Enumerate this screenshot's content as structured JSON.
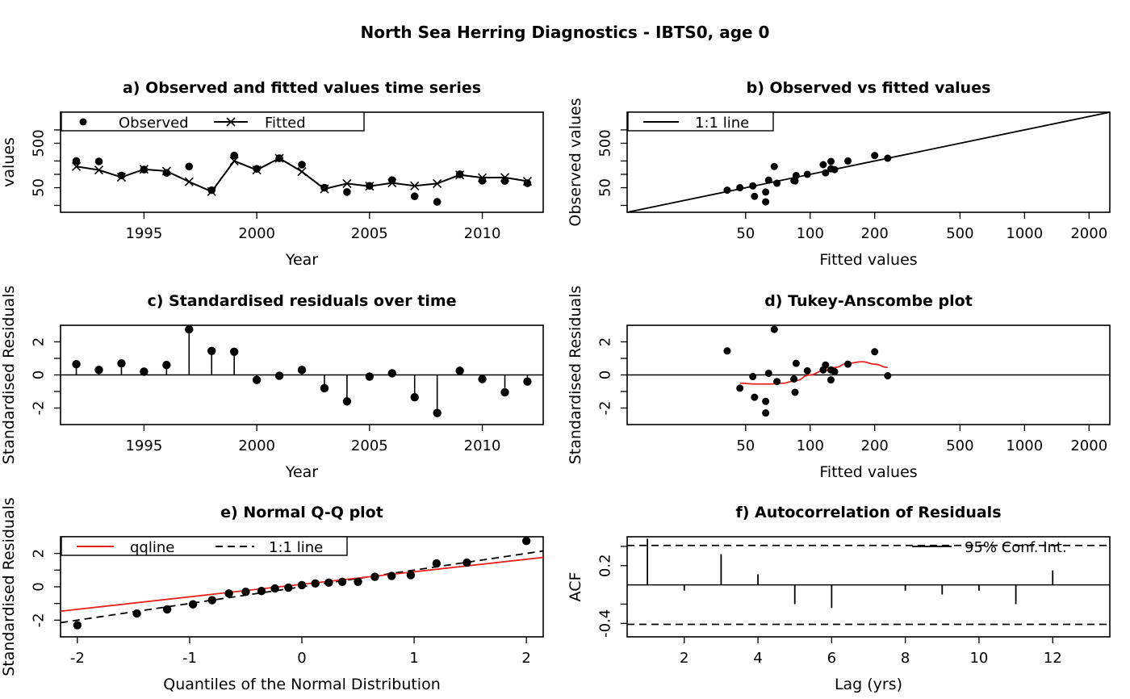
{
  "main_title": "North Sea Herring Diagnostics - IBTS0, age 0",
  "chart_data": [
    {
      "id": "a",
      "type": "line",
      "title": "a) Observed and fitted values time series",
      "xlabel": "Year",
      "ylabel": "values",
      "xlim": [
        1991.3,
        2012.7
      ],
      "ylim_log": [
        14,
        2500
      ],
      "xticks": [
        1995,
        2000,
        2005,
        2010
      ],
      "yticks": [
        50,
        500
      ],
      "legend": [
        "Observed",
        "Fitted"
      ],
      "legend_position": "top-left",
      "x": [
        1992,
        1993,
        1994,
        1995,
        1996,
        1997,
        1998,
        1999,
        2000,
        2001,
        2002,
        2003,
        2004,
        2005,
        2006,
        2007,
        2008,
        2009,
        2010,
        2011,
        2012
      ],
      "observed": [
        200,
        195,
        94,
        128,
        108,
        150,
        44,
        265,
        133,
        230,
        165,
        50,
        40,
        55,
        74,
        32,
        24,
        100,
        72,
        71,
        63
      ],
      "fitted": [
        150,
        125,
        86,
        130,
        118,
        68,
        41,
        200,
        125,
        230,
        115,
        47,
        62,
        54,
        64,
        55,
        62,
        97,
        84,
        85,
        70
      ]
    },
    {
      "id": "b",
      "type": "scatter",
      "title": "b) Observed vs fitted values",
      "xlabel": "Fitted values",
      "ylabel": "Observed values",
      "xlim_log": [
        14,
        2500
      ],
      "ylim_log": [
        14,
        2500
      ],
      "xticks": [
        50,
        100,
        200,
        500,
        1000,
        2000
      ],
      "yticks": [
        50,
        500
      ],
      "legend": [
        "1:1 line"
      ],
      "legend_position": "top-left",
      "fitted": [
        150,
        125,
        86,
        130,
        118,
        68,
        41,
        200,
        125,
        230,
        115,
        47,
        62,
        54,
        64,
        55,
        62,
        97,
        84,
        85,
        70
      ],
      "observed": [
        200,
        195,
        94,
        128,
        108,
        150,
        44,
        265,
        133,
        230,
        165,
        50,
        40,
        55,
        74,
        32,
        24,
        100,
        72,
        71,
        63
      ]
    },
    {
      "id": "c",
      "type": "bar",
      "title": "c) Standardised residuals over time",
      "xlabel": "Year",
      "ylabel": "Standardised Residuals",
      "xlim": [
        1991.3,
        2012.7
      ],
      "ylim": [
        -3,
        3
      ],
      "xticks": [
        1995,
        2000,
        2005,
        2010
      ],
      "yticks": [
        -2,
        0,
        2
      ],
      "x": [
        1992,
        1993,
        1994,
        1995,
        1996,
        1997,
        1998,
        1999,
        2000,
        2001,
        2002,
        2003,
        2004,
        2005,
        2006,
        2007,
        2008,
        2009,
        2010,
        2011,
        2012
      ],
      "residuals": [
        0.65,
        0.3,
        0.7,
        0.2,
        0.6,
        2.75,
        1.45,
        1.4,
        -0.3,
        -0.05,
        0.3,
        -0.8,
        -1.6,
        -0.1,
        0.1,
        -1.35,
        -2.3,
        0.25,
        -0.25,
        -1.05,
        -0.4
      ]
    },
    {
      "id": "d",
      "type": "scatter",
      "title": "d) Tukey-Anscombe plot",
      "xlabel": "Fitted values",
      "ylabel": "Standardised Residuals",
      "xlim_log": [
        14,
        2500
      ],
      "ylim": [
        -3,
        3
      ],
      "xticks": [
        50,
        100,
        200,
        500,
        1000,
        2000
      ],
      "yticks": [
        -2,
        0,
        2
      ],
      "fitted": [
        150,
        125,
        86,
        130,
        118,
        68,
        41,
        200,
        125,
        230,
        115,
        47,
        62,
        54,
        64,
        55,
        62,
        97,
        84,
        85,
        70
      ],
      "residuals": [
        0.65,
        0.3,
        0.7,
        0.2,
        0.6,
        2.75,
        1.45,
        1.4,
        -0.3,
        -0.05,
        0.3,
        -0.8,
        -1.6,
        -0.1,
        0.1,
        -1.35,
        -2.3,
        0.25,
        -0.25,
        -1.05,
        -0.4
      ],
      "smooth_color": "#e8231d",
      "smooth": {
        "x": [
          47,
          55,
          65,
          75,
          85,
          100,
          115,
          130,
          150,
          175,
          200,
          230
        ],
        "y": [
          -0.5,
          -0.55,
          -0.55,
          -0.5,
          -0.35,
          0.0,
          0.25,
          0.45,
          0.7,
          0.8,
          0.65,
          0.45
        ]
      }
    },
    {
      "id": "e",
      "type": "scatter",
      "title": "e) Normal Q-Q plot",
      "xlabel": "Quantiles of the Normal Distribution",
      "ylabel": "Standardised Residuals",
      "xlim": [
        -2.15,
        2.15
      ],
      "ylim": [
        -3,
        3
      ],
      "xticks": [
        -2,
        -1,
        0,
        1,
        2
      ],
      "yticks": [
        -2,
        0,
        2
      ],
      "legend": [
        "qqline",
        "1:1 line"
      ],
      "legend_position": "top-left",
      "qqline_color": "#e8231d",
      "qqline": {
        "intercept": 0.15,
        "slope": 0.75
      },
      "theoretical": [
        -2.0,
        -1.47,
        -1.2,
        -0.97,
        -0.8,
        -0.65,
        -0.5,
        -0.36,
        -0.24,
        -0.12,
        0.0,
        0.12,
        0.24,
        0.36,
        0.5,
        0.65,
        0.8,
        0.97,
        1.2,
        1.47,
        2.0
      ],
      "sample": [
        -2.3,
        -1.6,
        -1.35,
        -1.05,
        -0.8,
        -0.4,
        -0.3,
        -0.25,
        -0.1,
        -0.05,
        0.1,
        0.2,
        0.25,
        0.3,
        0.3,
        0.6,
        0.65,
        0.7,
        1.4,
        1.45,
        2.75
      ]
    },
    {
      "id": "f",
      "type": "bar",
      "title": "f) Autocorrelation of Residuals",
      "xlabel": "Lag (yrs)",
      "ylabel": "ACF",
      "xlim": [
        0.45,
        13.55
      ],
      "ylim": [
        -0.54,
        0.5
      ],
      "xticks": [
        2,
        4,
        6,
        8,
        10,
        12
      ],
      "yticks": [
        -0.4,
        0.2
      ],
      "legend": [
        "95% Conf. Int."
      ],
      "legend_position": "top-right",
      "conf_int": 0.41,
      "lags": [
        1,
        2,
        3,
        4,
        5,
        6,
        7,
        8,
        9,
        10,
        11,
        12,
        13
      ],
      "acf": [
        0.48,
        -0.06,
        0.32,
        0.11,
        -0.2,
        -0.24,
        0.0,
        -0.06,
        -0.1,
        -0.06,
        -0.2,
        0.15,
        0.0
      ]
    }
  ]
}
